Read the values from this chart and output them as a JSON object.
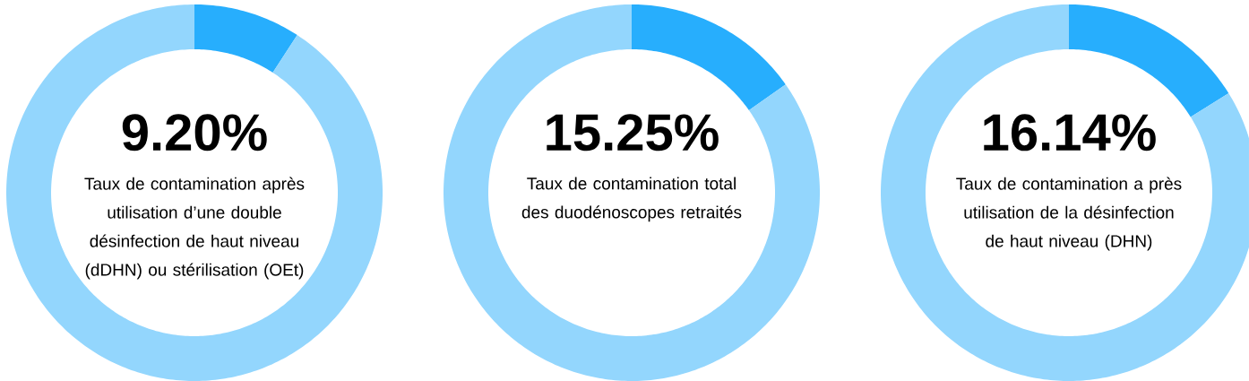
{
  "chart_data": [
    {
      "type": "donut",
      "categories": [
        null,
        null
      ],
      "values": [
        9.2,
        90.8
      ],
      "colors": [
        "#27aefd",
        "#93d6fd"
      ],
      "value_labels": [
        "9.20%",
        null
      ],
      "annotations": [
        "Taux de contamination après utilisation d’une double désinfection de haut niveau (dDHN) ou stérilisation (OEt)"
      ]
    },
    {
      "type": "donut",
      "categories": [
        null,
        null
      ],
      "values": [
        15.25,
        84.75
      ],
      "colors": [
        "#27aefd",
        "#93d6fd"
      ],
      "value_labels": [
        "15.25%",
        null
      ],
      "annotations": [
        "Taux de contamination total des duodénoscopes retraités"
      ]
    },
    {
      "type": "donut",
      "categories": [
        null,
        null
      ],
      "values": [
        16.14,
        83.86
      ],
      "colors": [
        "#27aefd",
        "#93d6fd"
      ],
      "value_labels": [
        "16.14%",
        null
      ],
      "annotations": [
        "Taux de contamination a près utilisation de la désinfection de haut niveau (DHN)"
      ]
    }
  ]
}
